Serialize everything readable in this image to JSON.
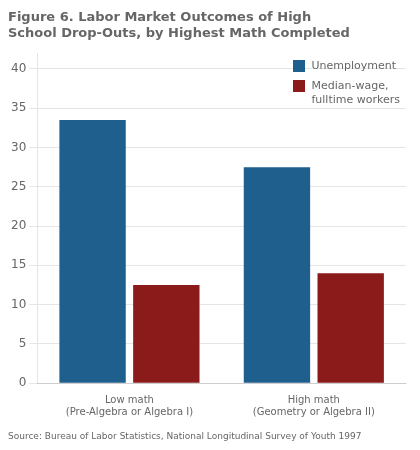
{
  "chart_data": {
    "type": "bar",
    "title": "Figure 6. Labor Market Outcomes of High\nSchool Drop-Outs, by Highest Math Completed",
    "categories": [
      "Low math\n(Pre-Algebra or Algebra I)",
      "High math\n(Geometry or Algebra II)"
    ],
    "series": [
      {
        "name": "Unemployment",
        "color": "#1e5f8e",
        "values": [
          33.5,
          27.5
        ]
      },
      {
        "name": "Median-wage,\nfulltime workers",
        "color": "#8b1a1a",
        "values": [
          12.5,
          14.0
        ]
      }
    ],
    "ylim": [
      0,
      42
    ],
    "yticks": [
      0,
      5,
      10,
      15,
      20,
      25,
      30,
      35,
      40
    ],
    "grid": true,
    "legend": "upper right",
    "annotations": [
      "Source: Bureau of Labor Statistics, National Longitudinal Survey of Youth 1997"
    ]
  }
}
